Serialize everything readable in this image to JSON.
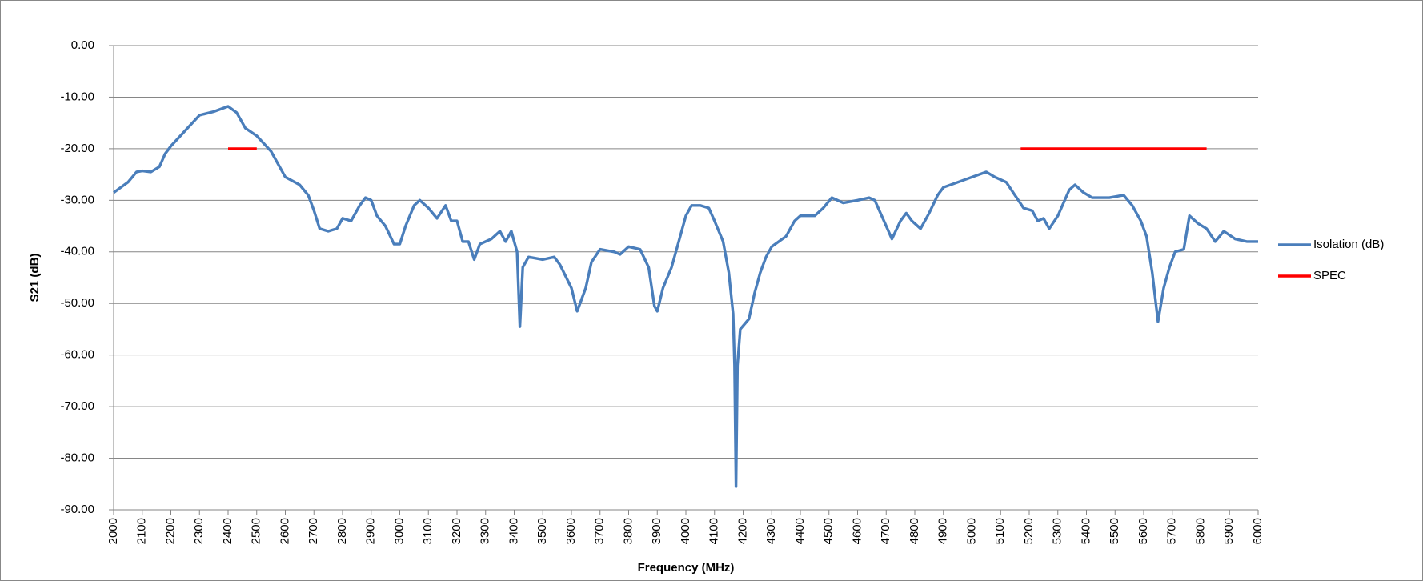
{
  "chart_data": {
    "type": "line",
    "x_label": "Frequency (MHz)",
    "y_label": "S21 (dB)",
    "xlim": [
      2000,
      6000
    ],
    "xticks": [
      2000,
      2100,
      2200,
      2300,
      2400,
      2500,
      2600,
      2700,
      2800,
      2900,
      3000,
      3100,
      3200,
      3300,
      3400,
      3500,
      3600,
      3700,
      3800,
      3900,
      4000,
      4100,
      4200,
      4300,
      4400,
      4500,
      4600,
      4700,
      4800,
      4900,
      5000,
      5100,
      5200,
      5300,
      5400,
      5500,
      5600,
      5700,
      5800,
      5900,
      6000
    ],
    "ylim": [
      -90,
      0
    ],
    "yticks": [
      {
        "value": 0,
        "label": "0.00"
      },
      {
        "value": -10,
        "label": "-10.00"
      },
      {
        "value": -20,
        "label": "-20.00"
      },
      {
        "value": -30,
        "label": "-30.00"
      },
      {
        "value": -40,
        "label": "-40.00"
      },
      {
        "value": -50,
        "label": "-50.00"
      },
      {
        "value": -60,
        "label": "-60.00"
      },
      {
        "value": -70,
        "label": "-70.00"
      },
      {
        "value": -80,
        "label": "-80.00"
      },
      {
        "value": -90,
        "label": "-90.00"
      }
    ],
    "grid": true,
    "legend": "right",
    "series": [
      {
        "name": "Isolation (dB)",
        "color": "#4a7ebb",
        "x": [
          2000,
          2050,
          2080,
          2100,
          2130,
          2160,
          2180,
          2200,
          2250,
          2300,
          2350,
          2400,
          2430,
          2460,
          2500,
          2550,
          2600,
          2650,
          2680,
          2700,
          2720,
          2750,
          2780,
          2800,
          2830,
          2860,
          2880,
          2900,
          2920,
          2950,
          2980,
          3000,
          3020,
          3050,
          3070,
          3100,
          3130,
          3160,
          3180,
          3200,
          3220,
          3240,
          3260,
          3280,
          3320,
          3350,
          3370,
          3390,
          3410,
          3420,
          3430,
          3450,
          3500,
          3540,
          3560,
          3600,
          3620,
          3650,
          3670,
          3700,
          3750,
          3770,
          3800,
          3840,
          3870,
          3890,
          3900,
          3920,
          3950,
          3970,
          4000,
          4020,
          4050,
          4080,
          4100,
          4130,
          4150,
          4165,
          4170,
          4175,
          4180,
          4190,
          4220,
          4240,
          4260,
          4280,
          4300,
          4350,
          4380,
          4400,
          4450,
          4480,
          4510,
          4550,
          4600,
          4640,
          4660,
          4700,
          4720,
          4750,
          4770,
          4790,
          4820,
          4850,
          4880,
          4900,
          4950,
          5000,
          5050,
          5080,
          5120,
          5150,
          5180,
          5210,
          5230,
          5250,
          5270,
          5300,
          5340,
          5360,
          5390,
          5420,
          5480,
          5530,
          5560,
          5590,
          5610,
          5630,
          5650,
          5670,
          5690,
          5710,
          5740,
          5760,
          5790,
          5820,
          5850,
          5880,
          5920,
          5960,
          6000
        ],
        "values": [
          -28.5,
          -26.5,
          -24.5,
          -24.3,
          -24.5,
          -23.5,
          -21,
          -19.5,
          -16.5,
          -13.5,
          -12.8,
          -11.8,
          -13,
          -16,
          -17.5,
          -20.5,
          -25.5,
          -27,
          -29,
          -32,
          -35.5,
          -36,
          -35.5,
          -33.5,
          -34,
          -31,
          -29.5,
          -30,
          -33,
          -35,
          -38.5,
          -38.5,
          -35,
          -31,
          -30,
          -31.5,
          -33.5,
          -31,
          -34,
          -34,
          -38,
          -38,
          -41.5,
          -38.5,
          -37.5,
          -36,
          -38,
          -36,
          -40,
          -54.5,
          -43,
          -41,
          -41.5,
          -41,
          -42.5,
          -47,
          -51.5,
          -47,
          -42,
          -39.5,
          -40,
          -40.5,
          -39,
          -39.5,
          -43,
          -50.5,
          -51.5,
          -47,
          -43,
          -39,
          -33,
          -31,
          -31,
          -31.5,
          -34,
          -38,
          -44,
          -52,
          -62,
          -85.5,
          -62,
          -55,
          -53,
          -48,
          -44,
          -41,
          -39,
          -37,
          -34,
          -33,
          -33,
          -31.5,
          -29.5,
          -30.5,
          -30,
          -29.5,
          -30,
          -35,
          -37.5,
          -34,
          -32.5,
          -34,
          -35.5,
          -32.5,
          -29,
          -27.5,
          -26.5,
          -25.5,
          -24.5,
          -25.5,
          -26.5,
          -29,
          -31.5,
          -32,
          -34,
          -33.5,
          -35.5,
          -33,
          -28,
          -27,
          -28.5,
          -29.5,
          -29.5,
          -29,
          -31,
          -34,
          -37,
          -44,
          -53.5,
          -47,
          -43,
          -40,
          -39.5,
          -33,
          -34.5,
          -35.5,
          -38,
          -36,
          -37.5,
          -38,
          -38
        ]
      },
      {
        "name": "SPEC",
        "color": "#ff0000",
        "x": [
          2400,
          2500,
          2500,
          5170,
          5820
        ],
        "values": [
          -20,
          -20,
          null,
          -20,
          -20
        ]
      }
    ]
  }
}
